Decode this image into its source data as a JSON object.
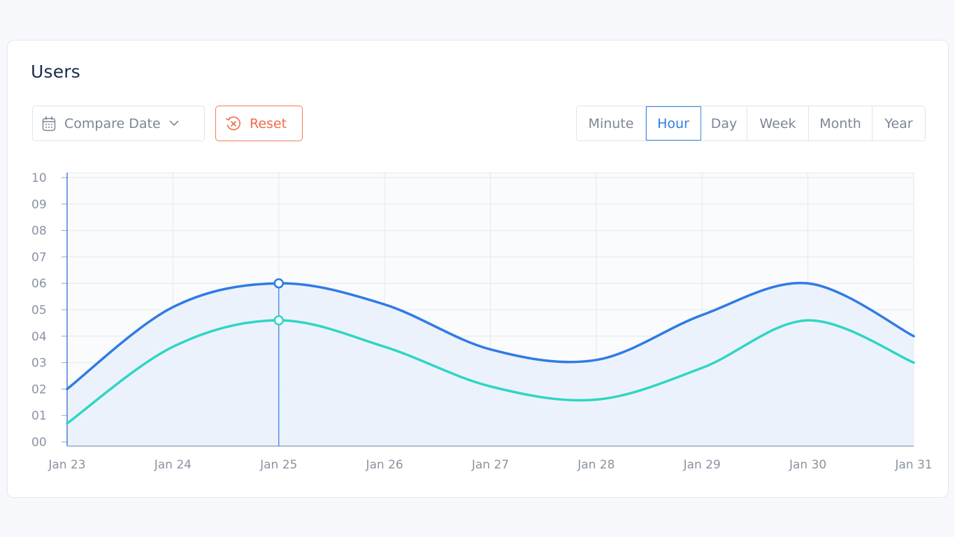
{
  "card": {
    "title": "Users"
  },
  "toolbar": {
    "compare_label": "Compare Date",
    "compare_icon": "calendar-icon",
    "reset_label": "Reset",
    "reset_icon": "reset-clock-icon",
    "ranges": [
      "Minute",
      "Hour",
      "Day",
      "Week",
      "Month",
      "Year"
    ],
    "active_range": "Hour"
  },
  "colors": {
    "series_primary": "#2f7be5",
    "series_secondary": "#2fd6c4",
    "area_fill": "#eaf1fb",
    "reset_accent": "#f26a4b",
    "active_accent": "#2f7be5"
  },
  "chart_data": {
    "type": "line",
    "title": "",
    "xlabel": "",
    "ylabel": "",
    "categories": [
      "Jan 23",
      "Jan 24",
      "Jan 25",
      "Jan 26",
      "Jan 27",
      "Jan 28",
      "Jan 29",
      "Jan 30",
      "Jan 31"
    ],
    "y_tick_labels": [
      "00",
      "01",
      "02",
      "03",
      "04",
      "05",
      "06",
      "07",
      "08",
      "09",
      "10"
    ],
    "ylim": [
      0,
      10
    ],
    "grid": true,
    "series": [
      {
        "values": [
          2.0,
          5.1,
          6.0,
          5.2,
          3.5,
          3.1,
          4.8,
          6.0,
          4.0
        ]
      },
      {
        "values": [
          0.7,
          3.6,
          4.6,
          3.6,
          2.1,
          1.6,
          2.8,
          4.6,
          3.0
        ]
      }
    ],
    "highlight_category": "Jan 25",
    "area_under": "series_primary"
  }
}
